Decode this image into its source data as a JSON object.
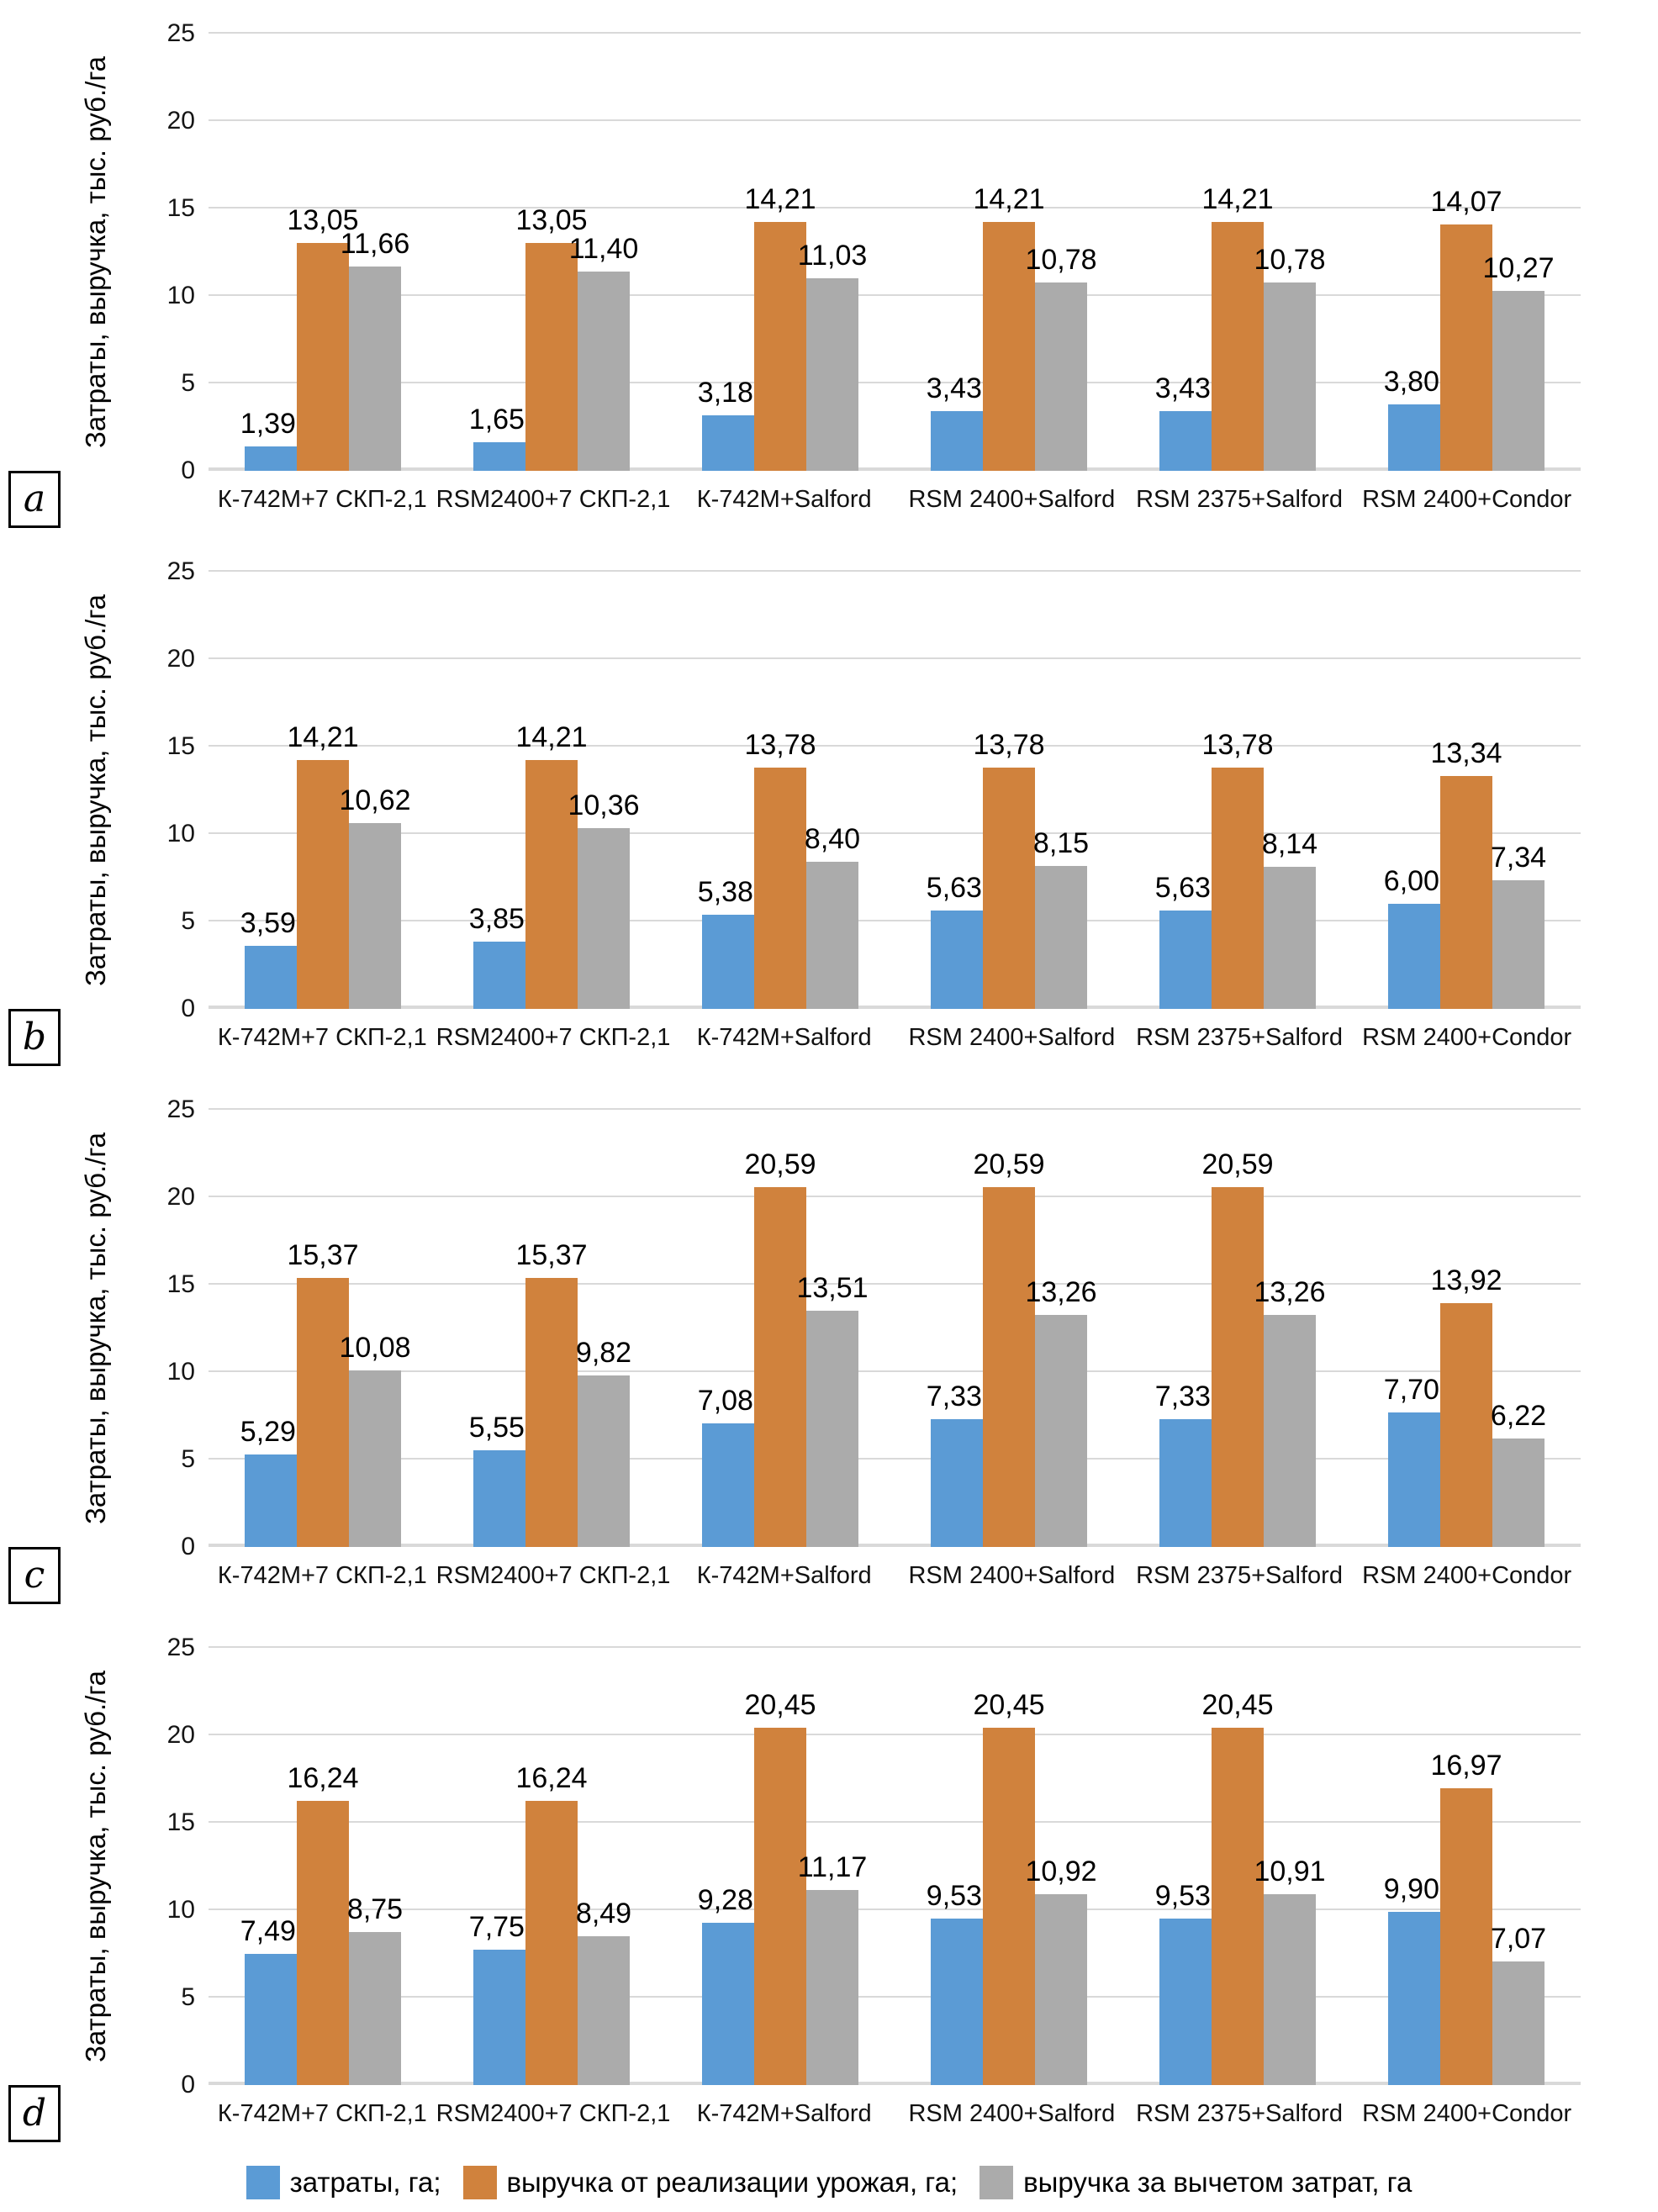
{
  "page": {
    "background": "#ffffff"
  },
  "palette": [
    "#5B9BD5",
    "#D0823D",
    "#ABABAB"
  ],
  "grid_color": "#D9D9D9",
  "y_axis_label": "Затраты, выручка, тыс. руб./га",
  "legend": {
    "position": "bottom",
    "items": [
      {
        "label": "затраты, га;"
      },
      {
        "label": "выручка от реализации урожая, га;"
      },
      {
        "label": "выручка за вычетом затрат, га"
      }
    ]
  },
  "chart_data": [
    {
      "type": "bar",
      "panel_label": "a",
      "ylabel": "Затраты, выручка, тыс. руб./га",
      "ylim": [
        0,
        25
      ],
      "yticks": [
        0,
        5,
        10,
        15,
        20,
        25
      ],
      "grid": true,
      "legend_position": "bottom",
      "categories": [
        "К-742М+7 СКП-2,1",
        "RSM2400+7 СКП-2,1",
        "К-742М+Salford",
        "RSM 2400+Salford",
        "RSM 2375+Salford",
        "RSM 2400+Condor"
      ],
      "series": [
        {
          "name": "затраты, га",
          "values": [
            1.39,
            1.65,
            3.18,
            3.43,
            3.43,
            3.8
          ]
        },
        {
          "name": "выручка от реализации урожая, га",
          "values": [
            13.05,
            13.05,
            14.21,
            14.21,
            14.21,
            14.07
          ]
        },
        {
          "name": "выручка за вычетом затрат, га",
          "values": [
            11.66,
            11.4,
            11.03,
            10.78,
            10.78,
            10.27
          ]
        }
      ]
    },
    {
      "type": "bar",
      "panel_label": "b",
      "ylabel": "Затраты, выручка, тыс. руб./га",
      "ylim": [
        0,
        25
      ],
      "yticks": [
        0,
        5,
        10,
        15,
        20,
        25
      ],
      "grid": true,
      "legend_position": "bottom",
      "categories": [
        "К-742М+7 СКП-2,1",
        "RSM2400+7 СКП-2,1",
        "К-742М+Salford",
        "RSM 2400+Salford",
        "RSM 2375+Salford",
        "RSM 2400+Condor"
      ],
      "series": [
        {
          "name": "затраты, га",
          "values": [
            3.59,
            3.85,
            5.38,
            5.63,
            5.63,
            6.0
          ]
        },
        {
          "name": "выручка от реализации урожая, га",
          "values": [
            14.21,
            14.21,
            13.78,
            13.78,
            13.78,
            13.34
          ]
        },
        {
          "name": "выручка за вычетом затрат, га",
          "values": [
            10.62,
            10.36,
            8.4,
            8.15,
            8.14,
            7.34
          ]
        }
      ]
    },
    {
      "type": "bar",
      "panel_label": "c",
      "ylabel": "Затраты, выручка, тыс. руб./га",
      "ylim": [
        0,
        25
      ],
      "yticks": [
        0,
        5,
        10,
        15,
        20,
        25
      ],
      "grid": true,
      "legend_position": "bottom",
      "categories": [
        "К-742М+7 СКП-2,1",
        "RSM2400+7 СКП-2,1",
        "К-742М+Salford",
        "RSM 2400+Salford",
        "RSM 2375+Salford",
        "RSM 2400+Condor"
      ],
      "series": [
        {
          "name": "затраты, га",
          "values": [
            5.29,
            5.55,
            7.08,
            7.33,
            7.33,
            7.7
          ]
        },
        {
          "name": "выручка от реализации урожая, га",
          "values": [
            15.37,
            15.37,
            20.59,
            20.59,
            20.59,
            13.92
          ]
        },
        {
          "name": "выручка за вычетом затрат, га",
          "values": [
            10.08,
            9.82,
            13.51,
            13.26,
            13.26,
            6.22
          ]
        }
      ]
    },
    {
      "type": "bar",
      "panel_label": "d",
      "ylabel": "Затраты, выручка, тыс. руб./га",
      "ylim": [
        0,
        25
      ],
      "yticks": [
        0,
        5,
        10,
        15,
        20,
        25
      ],
      "grid": true,
      "legend_position": "bottom",
      "categories": [
        "К-742М+7 СКП-2,1",
        "RSM2400+7 СКП-2,1",
        "К-742М+Salford",
        "RSM 2400+Salford",
        "RSM 2375+Salford",
        "RSM 2400+Condor"
      ],
      "series": [
        {
          "name": "затраты, га",
          "values": [
            7.49,
            7.75,
            9.28,
            9.53,
            9.53,
            9.9
          ]
        },
        {
          "name": "выручка от реализации урожая, га",
          "values": [
            16.24,
            16.24,
            20.45,
            20.45,
            20.45,
            16.97
          ]
        },
        {
          "name": "выручка за вычетом затрат, га",
          "values": [
            8.75,
            8.49,
            11.17,
            10.92,
            10.91,
            7.07
          ]
        }
      ]
    }
  ]
}
